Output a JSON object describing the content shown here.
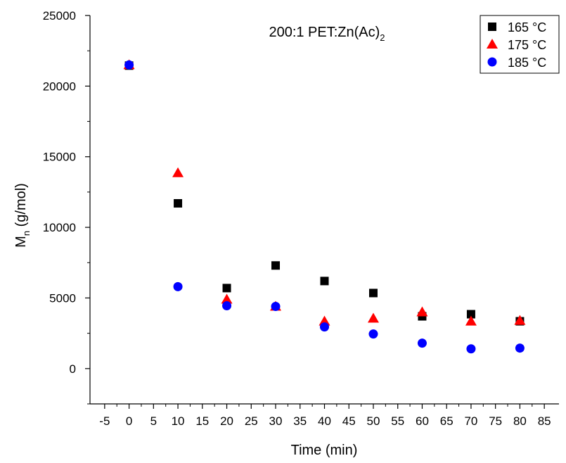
{
  "chart_data": {
    "type": "scatter",
    "title": "200:1 PET:Zn(Ac)",
    "title_subscript": "2",
    "xlabel": "Time (min)",
    "ylabel_main": "M",
    "ylabel_subscript": "n",
    "ylabel_rest": " (g/mol)",
    "xlim": [
      -8,
      88
    ],
    "ylim": [
      -2500,
      25000
    ],
    "x_ticks": [
      -5,
      0,
      5,
      10,
      15,
      20,
      25,
      30,
      35,
      40,
      45,
      50,
      55,
      60,
      65,
      70,
      75,
      80,
      85
    ],
    "y_ticks": [
      0,
      5000,
      10000,
      15000,
      20000,
      25000
    ],
    "legend_position": "top-right",
    "series": [
      {
        "name": "165 °C",
        "marker": "square",
        "color": "#000000",
        "x": [
          0,
          10,
          20,
          30,
          40,
          50,
          60,
          70,
          80
        ],
        "y": [
          21450,
          11700,
          5700,
          7300,
          6200,
          5350,
          3700,
          3850,
          3350
        ]
      },
      {
        "name": "175 °C",
        "marker": "triangle",
        "color": "#ff0000",
        "x": [
          0,
          10,
          20,
          30,
          40,
          50,
          60,
          70,
          80
        ],
        "y": [
          21500,
          13850,
          4900,
          4400,
          3350,
          3550,
          4000,
          3350,
          3400
        ]
      },
      {
        "name": "185 °C",
        "marker": "circle",
        "color": "#0000ff",
        "x": [
          0,
          10,
          20,
          30,
          40,
          50,
          60,
          70,
          80
        ],
        "y": [
          21500,
          5800,
          4450,
          4400,
          2950,
          2450,
          1800,
          1400,
          1450
        ]
      }
    ]
  }
}
